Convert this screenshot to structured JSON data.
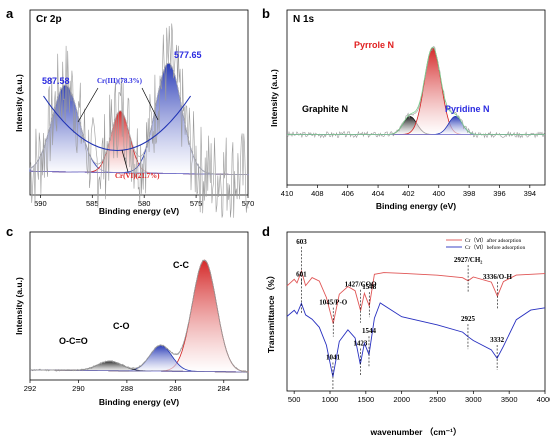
{
  "chart_data": [
    {
      "type": "line",
      "panel": "a",
      "title": "Cr 2p",
      "xlabel": "Binding energy (eV)",
      "ylabel": "Intensity (a.u.)",
      "xlim": [
        591,
        570
      ],
      "xticks": [
        590,
        585,
        580,
        575,
        570
      ],
      "annotations": [
        {
          "text": "587.58",
          "color": "#2a2ae0",
          "x": 587.58
        },
        {
          "text": "577.65",
          "color": "#2a2ae0",
          "x": 577.65
        },
        {
          "text": "Cr(III)(78.3%)",
          "color": "#2a2ae0"
        },
        {
          "text": "Cr(VI)(21.7%)",
          "color": "#e02020"
        }
      ],
      "peaks": [
        {
          "center": 587.58,
          "height": 0.52,
          "sigma": 1.3,
          "color": "#1f32b4"
        },
        {
          "center": 582.3,
          "height": 0.37,
          "sigma": 0.9,
          "color": "#d21e1e"
        },
        {
          "center": 577.65,
          "height": 0.66,
          "sigma": 1.25,
          "color": "#1f32b4"
        }
      ]
    },
    {
      "type": "line",
      "panel": "b",
      "title": "N 1s",
      "xlabel": "Binding energy (eV)",
      "ylabel": "Intensity (a.u.)",
      "xlim": [
        410,
        393
      ],
      "xticks": [
        410,
        408,
        406,
        404,
        402,
        400,
        398,
        396,
        394
      ],
      "annotations": [
        {
          "text": "Pyrrole N",
          "color": "#e02020",
          "x": 399.7
        },
        {
          "text": "Graphite N",
          "color": "#000000",
          "x": 401.9
        },
        {
          "text": "Pyridine N",
          "color": "#2a2ae0",
          "x": 398.5
        }
      ],
      "peaks": [
        {
          "center": 401.9,
          "height": 0.15,
          "sigma": 0.45,
          "color": "#111111"
        },
        {
          "center": 400.4,
          "height": 0.72,
          "sigma": 0.55,
          "color": "#d21e1e"
        },
        {
          "center": 398.9,
          "height": 0.15,
          "sigma": 0.45,
          "color": "#1f32b4"
        }
      ]
    },
    {
      "type": "line",
      "panel": "c",
      "xlabel": "Binding energy (eV)",
      "ylabel": "Intensity (a.u.)",
      "xlim": [
        292,
        283
      ],
      "xticks": [
        292,
        290,
        288,
        286,
        284
      ],
      "annotations": [
        {
          "text": "C-C",
          "color": "#000000",
          "x": 284.8
        },
        {
          "text": "C-O",
          "color": "#000000",
          "x": 286.6
        },
        {
          "text": "O-C=O",
          "color": "#000000",
          "x": 288.7
        }
      ],
      "peaks": [
        {
          "center": 284.8,
          "height": 0.82,
          "sigma": 0.5,
          "color": "#d21e1e"
        },
        {
          "center": 286.6,
          "height": 0.19,
          "sigma": 0.45,
          "color": "#1f32b4"
        },
        {
          "center": 288.7,
          "height": 0.07,
          "sigma": 0.5,
          "color": "#222222"
        }
      ]
    },
    {
      "type": "line",
      "panel": "d",
      "xlabel": "wavenumber （cm⁻¹）",
      "ylabel": "Transmittance（%）",
      "xlim": [
        400,
        4000
      ],
      "xticks": [
        500,
        1000,
        1500,
        2000,
        2500,
        3000,
        3500,
        4000
      ],
      "legend": [
        "Cr（Ⅵ）after adsorption",
        "Cr（Ⅵ）before adsorption"
      ],
      "legend_position": "top-right",
      "series": [
        {
          "name": "Cr（Ⅵ）after adsorption",
          "color": "#e05555",
          "x": [
            400,
            500,
            540,
            603,
            660,
            750,
            850,
            950,
            1045,
            1130,
            1250,
            1350,
            1427,
            1480,
            1548,
            1620,
            1750,
            2000,
            2500,
            2850,
            2927,
            3000,
            3250,
            3336,
            3420,
            3600,
            3800,
            4000
          ],
          "y": [
            70,
            74,
            72,
            80,
            70,
            76,
            74,
            62,
            42,
            64,
            70,
            66,
            52,
            64,
            56,
            78,
            79,
            79,
            78,
            76,
            74,
            76,
            72,
            62,
            73,
            77,
            78,
            78
          ]
        },
        {
          "name": "Cr（Ⅵ）before adsorption",
          "color": "#2830c0",
          "x": [
            400,
            500,
            540,
            601,
            660,
            750,
            850,
            950,
            1041,
            1130,
            1250,
            1350,
            1423,
            1480,
            1544,
            1620,
            1700,
            2000,
            2500,
            2850,
            2925,
            3000,
            3250,
            3332,
            3420,
            3600,
            3800,
            4000
          ],
          "y": [
            48,
            52,
            50,
            58,
            49,
            46,
            40,
            28,
            4,
            30,
            38,
            32,
            14,
            28,
            20,
            46,
            58,
            48,
            42,
            36,
            33,
            30,
            24,
            18,
            26,
            46,
            52,
            54
          ]
        }
      ],
      "annotations": [
        {
          "text": "603",
          "x": 603
        },
        {
          "text": "1045/P-O",
          "x": 1045
        },
        {
          "text": "1427/COO",
          "x": 1427
        },
        {
          "text": "1548",
          "x": 1548
        },
        {
          "text": "2927/CH₂",
          "x": 2927
        },
        {
          "text": "3336/O-H",
          "x": 3336
        },
        {
          "text": "601",
          "x": 601
        },
        {
          "text": "1041",
          "x": 1041
        },
        {
          "text": "1423",
          "x": 1423
        },
        {
          "text": "1544",
          "x": 1544
        },
        {
          "text": "2925",
          "x": 2925
        },
        {
          "text": "3332",
          "x": 3332
        }
      ]
    }
  ]
}
